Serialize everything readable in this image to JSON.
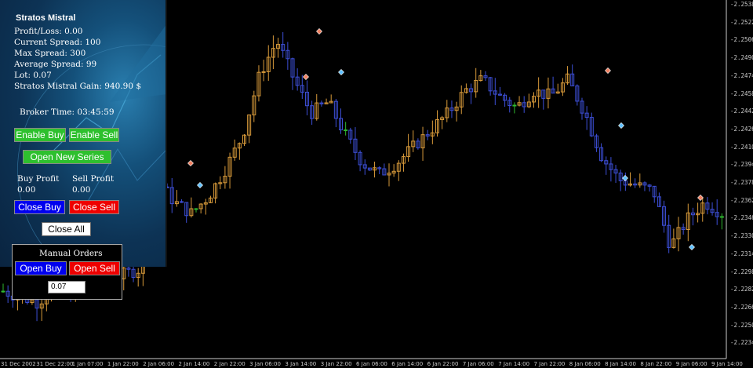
{
  "panel": {
    "title": "Stratos Mistral",
    "profit_loss": "Profit/Loss: 0.00",
    "current_spread": "Current Spread: 100",
    "max_spread": "Max Spread: 300",
    "average_spread": "Average Spread: 99",
    "lot": "Lot: 0.07",
    "gain": "Stratos Mistral Gain: 940.90 $",
    "broker_time": "Broker Time: 03:45:59",
    "enable_buy": "Enable Buy",
    "enable_sell": "Enable Sell",
    "open_new_series": "Open New Series",
    "buy_profit_label": "Buy Profit",
    "buy_profit_value": "0.00",
    "sell_profit_label": "Sell Profit",
    "sell_profit_value": "0.00",
    "close_buy": "Close Buy",
    "close_sell": "Close Sell",
    "close_all": "Close All"
  },
  "manual": {
    "title": "Manual Orders",
    "open_buy": "Open Buy",
    "open_sell": "Open Sell",
    "lot_value": "0.07"
  },
  "price_axis": [
    "2.25380",
    "2.25220",
    "2.25060",
    "2.24900",
    "2.24740",
    "2.24580",
    "2.24420",
    "2.24260",
    "2.24100",
    "2.23940",
    "2.23780",
    "2.23620",
    "2.23460",
    "2.23300",
    "2.23140",
    "2.22980",
    "2.22820",
    "2.22660",
    "2.22500",
    "2.22340"
  ],
  "time_axis": [
    "31 Dec 2002",
    "31 Dec 22:00",
    "1 Jan 07:00",
    "1 Jan 22:00",
    "2 Jan 06:00",
    "2 Jan 14:00",
    "2 Jan 22:00",
    "3 Jan 06:00",
    "3 Jan 14:00",
    "3 Jan 22:00",
    "6 Jan 06:00",
    "6 Jan 14:00",
    "6 Jan 22:00",
    "7 Jan 06:00",
    "7 Jan 14:00",
    "7 Jan 22:00",
    "8 Jan 06:00",
    "8 Jan 14:00",
    "8 Jan 22:00",
    "9 Jan 06:00",
    "9 Jan 14:00"
  ],
  "colors": {
    "bull": "#d89a3a",
    "bear": "#3d4fd8",
    "neutral": "#2fb82f",
    "axis": "#cccccc"
  },
  "chart_data": {
    "type": "candlestick",
    "price_range": [
      2.2226,
      2.2542
    ],
    "approx_close_path": [
      2.228,
      2.2275,
      2.227,
      2.2282,
      2.2278,
      2.2285,
      2.229,
      2.2295,
      2.23,
      2.238,
      2.236,
      2.235,
      2.2365,
      2.239,
      2.242,
      2.2475,
      2.2505,
      2.247,
      2.244,
      2.245,
      2.242,
      2.2395,
      2.2385,
      2.2395,
      2.241,
      2.2425,
      2.244,
      2.246,
      2.247,
      2.2455,
      2.2445,
      2.246,
      2.2455,
      2.247,
      2.244,
      2.24,
      2.238,
      2.2375,
      2.237,
      2.232,
      2.2345,
      2.236,
      2.235
    ]
  }
}
